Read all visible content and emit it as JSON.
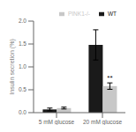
{
  "chart_data": {
    "type": "bar",
    "categories": [
      "5 mM glucose",
      "20 mM glucose"
    ],
    "series": [
      {
        "name": "WT",
        "color": "#1a1a1a",
        "values": [
          0.07,
          1.48
        ],
        "errors": [
          0.03,
          0.33
        ]
      },
      {
        "name": "PINK1-/-",
        "color": "#c8c8c8",
        "values": [
          0.1,
          0.58
        ],
        "errors": [
          0.02,
          0.07
        ]
      }
    ],
    "ylabel": "Insulin secretion (%)",
    "ylim": [
      0,
      2.0
    ],
    "yticks": [
      {
        "value": 0.0,
        "label": "0.0"
      },
      0.5,
      {
        "value": 1.0,
        "label": "1.0"
      },
      1.5,
      {
        "value": 2.0,
        "label": "2.0"
      }
    ],
    "annotations": [
      {
        "text": "**",
        "category": "20 mM glucose",
        "series": "PINK1-/-"
      }
    ],
    "legend": "upper right",
    "grid": false
  }
}
